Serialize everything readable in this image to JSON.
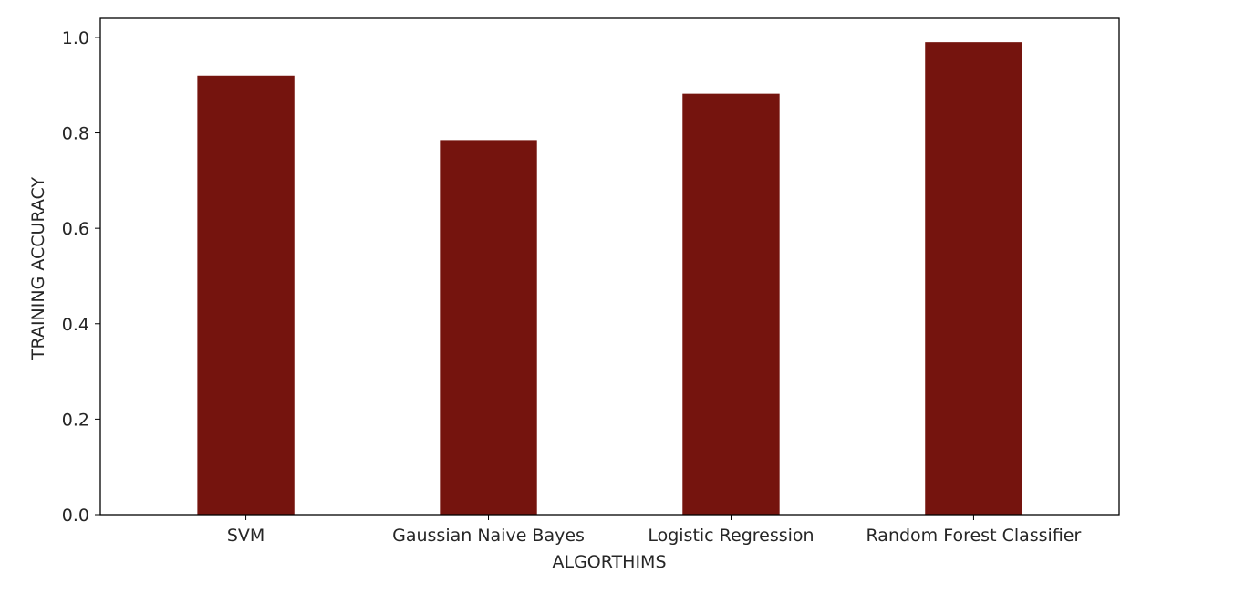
{
  "chart_data": {
    "type": "bar",
    "categories": [
      "SVM",
      "Gaussian Naive Bayes",
      "Logistic Regression",
      "Random Forest Classifier"
    ],
    "values": [
      0.92,
      0.785,
      0.882,
      0.99
    ],
    "title": "",
    "xlabel": "ALGORTHIMS",
    "ylabel": "TRAINING ACCURACY",
    "ylim": [
      0,
      1.04
    ],
    "yticks": [
      "0.0",
      "0.2",
      "0.4",
      "0.6",
      "0.8",
      "1.0"
    ],
    "bar_color": "#75140e",
    "grid": false,
    "legend": "none"
  }
}
